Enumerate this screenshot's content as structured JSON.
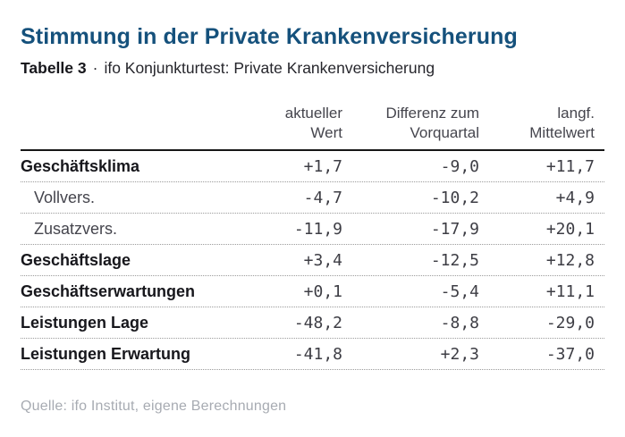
{
  "title": "Stimmung in der Private Krankenversicherung",
  "subtitle": {
    "label": "Tabelle 3",
    "separator": "·",
    "text": "ifo Konjunkturtest: Private Krankenversicherung"
  },
  "table": {
    "headers": [
      {
        "line1": "aktueller",
        "line2": "Wert"
      },
      {
        "line1": "Differenz zum",
        "line2": "Vorquartal"
      },
      {
        "line1": "langf.",
        "line2": "Mittelwert"
      }
    ],
    "rows": [
      {
        "label": "Geschäftsklima",
        "values": [
          "+1,7",
          "-9,0",
          "+11,7"
        ]
      },
      {
        "label": "Vollvers.",
        "values": [
          "-4,7",
          "-10,2",
          "+4,9"
        ]
      },
      {
        "label": "Zusatzvers.",
        "values": [
          "-11,9",
          "-17,9",
          "+20,1"
        ]
      },
      {
        "label": "Geschäftslage",
        "values": [
          "+3,4",
          "-12,5",
          "+12,8"
        ]
      },
      {
        "label": "Geschäftserwartungen",
        "values": [
          "+0,1",
          "-5,4",
          "+11,1"
        ]
      },
      {
        "label": "Leistungen Lage",
        "values": [
          "-48,2",
          "-8,8",
          "-29,0"
        ]
      },
      {
        "label": "Leistungen Erwartung",
        "values": [
          "-41,8",
          "+2,3",
          "-37,0"
        ]
      }
    ]
  },
  "source": "Quelle: ifo Institut, eigene Berechnungen",
  "colors": {
    "title_blue": "#15517c",
    "text_dark": "#17171c",
    "text_muted": "#45454d",
    "number_gray": "#3d3d44",
    "rule_solid": "#161616",
    "rule_dotted": "#9b9b9b",
    "source_gray": "#a7abb2"
  },
  "chart_data": {
    "type": "table",
    "title": "Stimmung in der Private Krankenversicherung",
    "subtitle": "Tabelle 3 · ifo Konjunkturtest: Private Krankenversicherung",
    "columns": [
      "",
      "aktueller Wert",
      "Differenz zum Vorquartal",
      "langf. Mittelwert"
    ],
    "rows": [
      [
        "Geschäftsklima",
        1.7,
        -9.0,
        11.7
      ],
      [
        "Vollvers.",
        -4.7,
        -10.2,
        4.9
      ],
      [
        "Zusatzvers.",
        -11.9,
        -17.9,
        20.1
      ],
      [
        "Geschäftslage",
        3.4,
        -12.5,
        12.8
      ],
      [
        "Geschäftserwartungen",
        0.1,
        -5.4,
        11.1
      ],
      [
        "Leistungen Lage",
        -48.2,
        -8.8,
        -29.0
      ],
      [
        "Leistungen Erwartung",
        -41.8,
        2.3,
        -37.0
      ]
    ],
    "notes": "indented sub-rows: Vollvers., Zusatzvers. (components of Geschäftsklima); values use German decimal comma",
    "source": "Quelle: ifo Institut, eigene Berechnungen"
  }
}
